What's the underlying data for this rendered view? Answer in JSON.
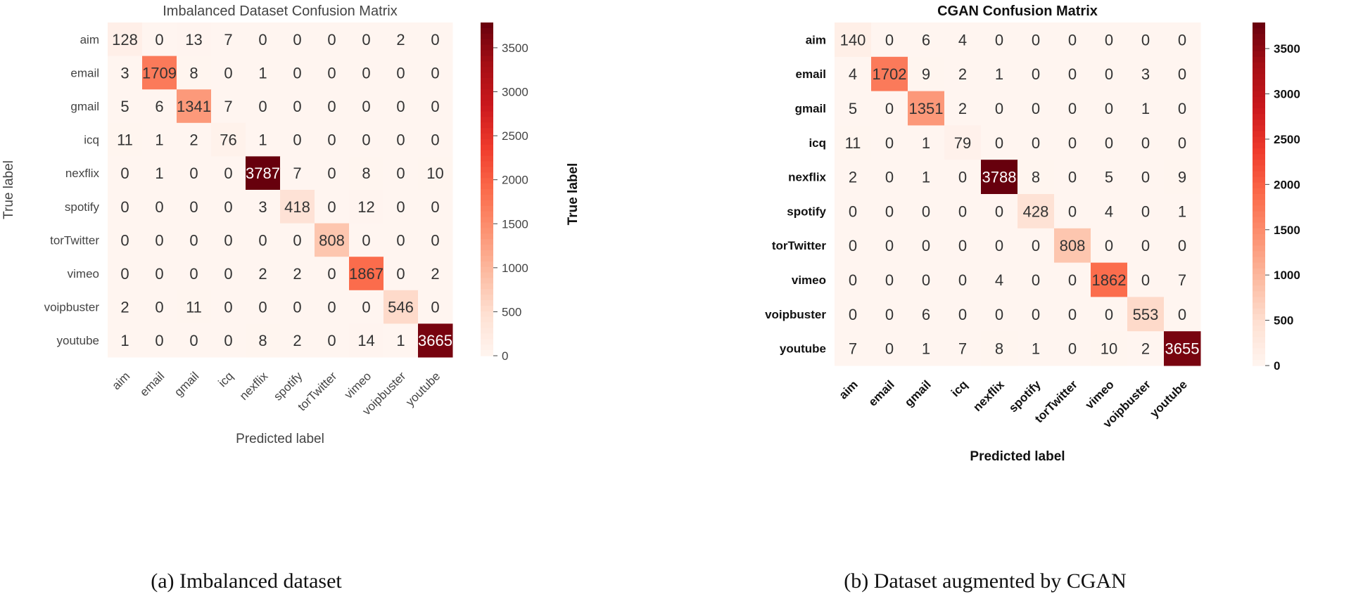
{
  "chart_data": [
    {
      "type": "heatmap",
      "title": "Imbalanced Dataset Confusion Matrix",
      "caption": "(a) Imbalanced dataset",
      "xlabel": "Predicted label",
      "ylabel": "True label",
      "labels": [
        "aim",
        "email",
        "gmail",
        "icq",
        "nexflix",
        "spotify",
        "torTwitter",
        "vimeo",
        "voipbuster",
        "youtube"
      ],
      "matrix": [
        [
          128,
          0,
          13,
          7,
          0,
          0,
          0,
          0,
          2,
          0
        ],
        [
          3,
          1709,
          8,
          0,
          1,
          0,
          0,
          0,
          0,
          0
        ],
        [
          5,
          6,
          1341,
          7,
          0,
          0,
          0,
          0,
          0,
          0
        ],
        [
          11,
          1,
          2,
          76,
          1,
          0,
          0,
          0,
          0,
          0
        ],
        [
          0,
          1,
          0,
          0,
          3787,
          7,
          0,
          8,
          0,
          10
        ],
        [
          0,
          0,
          0,
          0,
          3,
          418,
          0,
          12,
          0,
          0
        ],
        [
          0,
          0,
          0,
          0,
          0,
          0,
          808,
          0,
          0,
          0
        ],
        [
          0,
          0,
          0,
          0,
          2,
          2,
          0,
          1867,
          0,
          2
        ],
        [
          2,
          0,
          11,
          0,
          0,
          0,
          0,
          0,
          546,
          0
        ],
        [
          1,
          0,
          0,
          0,
          8,
          2,
          0,
          14,
          1,
          3665
        ]
      ],
      "colorbar_ticks": [
        0,
        500,
        1000,
        1500,
        2000,
        2500,
        3000,
        3500
      ],
      "colormap": "Reds"
    },
    {
      "type": "heatmap",
      "title": "CGAN Confusion Matrix",
      "caption": "(b) Dataset augmented by CGAN",
      "xlabel": "Predicted label",
      "ylabel": "True label",
      "labels": [
        "aim",
        "email",
        "gmail",
        "icq",
        "nexflix",
        "spotify",
        "torTwitter",
        "vimeo",
        "voipbuster",
        "youtube"
      ],
      "matrix": [
        [
          140,
          0,
          6,
          4,
          0,
          0,
          0,
          0,
          0,
          0
        ],
        [
          4,
          1702,
          9,
          2,
          1,
          0,
          0,
          0,
          3,
          0
        ],
        [
          5,
          0,
          1351,
          2,
          0,
          0,
          0,
          0,
          1,
          0
        ],
        [
          11,
          0,
          1,
          79,
          0,
          0,
          0,
          0,
          0,
          0
        ],
        [
          2,
          0,
          1,
          0,
          3788,
          8,
          0,
          5,
          0,
          9
        ],
        [
          0,
          0,
          0,
          0,
          0,
          428,
          0,
          4,
          0,
          1
        ],
        [
          0,
          0,
          0,
          0,
          0,
          0,
          808,
          0,
          0,
          0
        ],
        [
          0,
          0,
          0,
          0,
          4,
          0,
          0,
          1862,
          0,
          7
        ],
        [
          0,
          0,
          6,
          0,
          0,
          0,
          0,
          0,
          553,
          0
        ],
        [
          7,
          0,
          1,
          7,
          8,
          1,
          0,
          10,
          2,
          3655
        ]
      ],
      "colorbar_ticks": [
        0,
        500,
        1000,
        1500,
        2000,
        2500,
        3000,
        3500
      ],
      "colormap": "Reds"
    }
  ]
}
